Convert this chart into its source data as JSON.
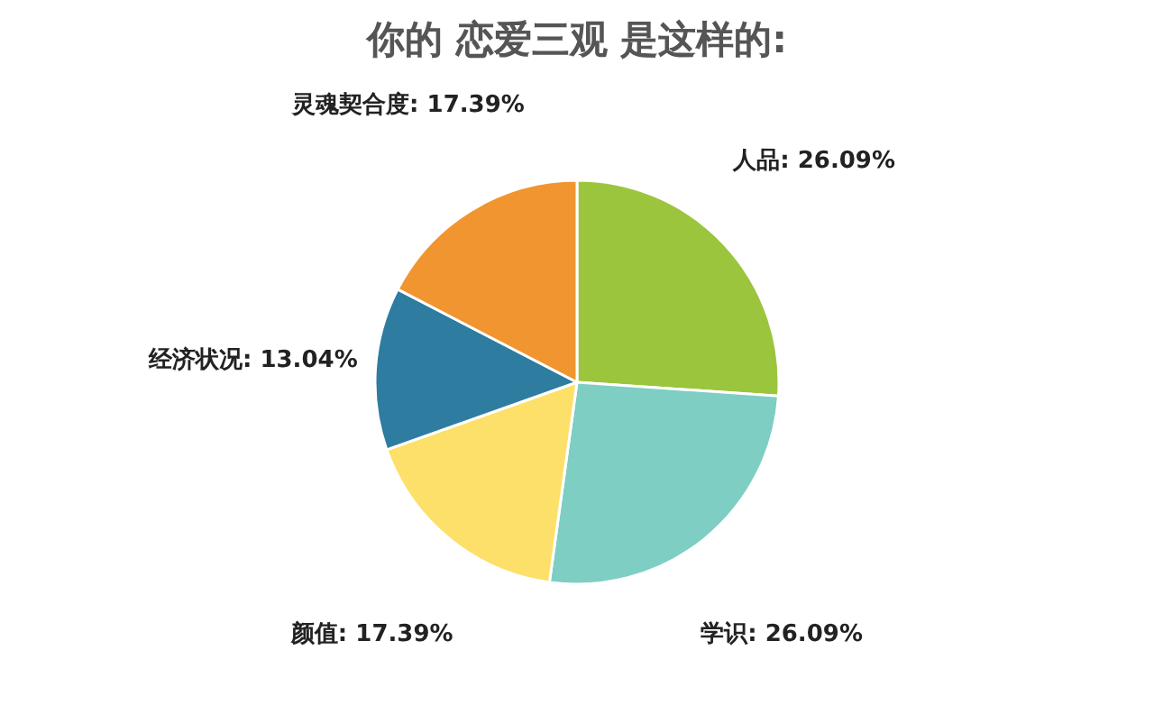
{
  "chart_data": {
    "type": "pie",
    "title": "你的 恋爱三观 是这样的:",
    "categories": [
      "人品",
      "学识",
      "颜值",
      "经济状况",
      "灵魂契合度"
    ],
    "values": [
      26.09,
      26.09,
      17.39,
      13.04,
      17.39
    ],
    "value_labels": [
      "26.09%",
      "26.09%",
      "17.39%",
      "13.04%",
      "17.39%"
    ],
    "colors": [
      "#9bc53d",
      "#7ecec4",
      "#fde06a",
      "#2e7ca0",
      "#f0952f"
    ],
    "legend": false
  }
}
